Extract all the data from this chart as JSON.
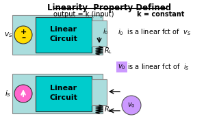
{
  "title": "Linearity  Property Defined",
  "subtitle1": "output = k (input)",
  "subtitle2": "k = constant",
  "bg_color": "#ffffff",
  "circuit_fill": "#00cccc",
  "vs_circle_color": "#ffdd00",
  "is_circle_color": "#ff66cc",
  "v0_circle_color": "#cc99ff",
  "v0_label_bg": "#cc99ff",
  "text_color": "#000000",
  "title_color": "#000000",
  "outer_fill": "#aadddd"
}
